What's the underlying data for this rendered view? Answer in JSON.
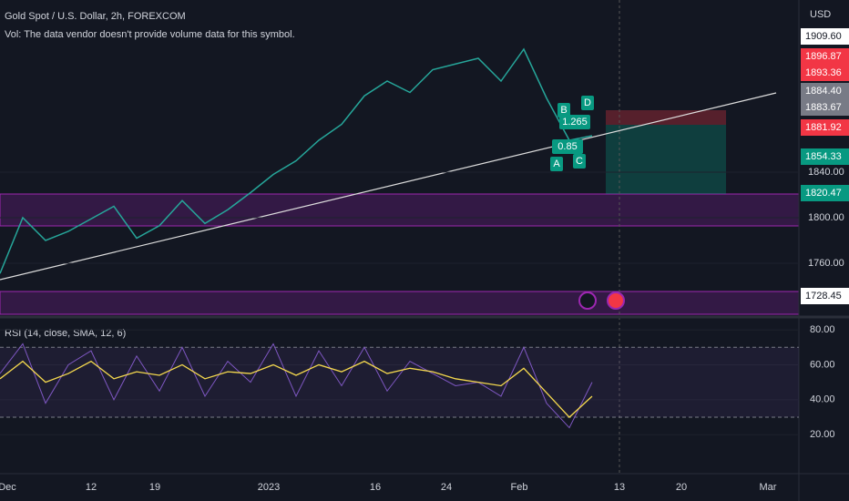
{
  "header": {
    "symbol": "Gold Spot / U.S. Dollar, 2h, FOREXCOM",
    "vol_note": "Vol: The data vendor doesn't provide volume data for this symbol."
  },
  "price_pane": {
    "currency": "USD",
    "ylim": [
      1715.2,
      1991.2
    ],
    "yticks": [
      {
        "value": 1760,
        "label": "1760.00"
      },
      {
        "value": 1800,
        "label": "1800.00"
      },
      {
        "value": 1840,
        "label": "1840.00"
      }
    ],
    "line_color": "#26a69a",
    "close": [
      1751,
      1800,
      1780,
      1788,
      1799,
      1810,
      1782,
      1793,
      1815,
      1795,
      1807,
      1822,
      1838,
      1850,
      1868,
      1882,
      1907,
      1920,
      1910,
      1930,
      1935,
      1940,
      1920,
      1948,
      1905,
      1868,
      1872
    ],
    "price_tags": [
      "1909.60",
      "1896.87",
      "1893.36",
      "1884.40",
      "1883.67",
      "1881.92",
      "1854.33",
      "1820.47",
      "1728.45"
    ],
    "pattern_labels": [
      "A",
      "B",
      "C",
      "D"
    ],
    "ratios": [
      "1.265",
      "0.85"
    ]
  },
  "rsi_pane": {
    "title": "RSI (14, close, SMA, 12, 6)",
    "ylim": [
      -2.3,
      86.3
    ],
    "yticks": [
      {
        "value": 20,
        "label": "20.00"
      },
      {
        "value": 40,
        "label": "40.00"
      },
      {
        "value": 60,
        "label": "60.00"
      },
      {
        "value": 80,
        "label": "80.00"
      }
    ],
    "bands": [
      30,
      70
    ],
    "rsi_color": "#7e57c2",
    "ma_color": "#f5d94e",
    "rsi": [
      55,
      72,
      38,
      60,
      68,
      40,
      65,
      45,
      70,
      42,
      62,
      50,
      72,
      42,
      68,
      48,
      70,
      45,
      62,
      55,
      48,
      50,
      42,
      70,
      38,
      24,
      50
    ],
    "ma": [
      52,
      62,
      50,
      55,
      62,
      52,
      56,
      54,
      60,
      52,
      56,
      55,
      60,
      54,
      60,
      56,
      62,
      55,
      58,
      56,
      52,
      50,
      48,
      58,
      44,
      30,
      42
    ]
  },
  "time_axis": [
    "Dec",
    "12",
    "19",
    "2023",
    "16",
    "24",
    "Feb",
    "13",
    "20",
    "Mar"
  ]
}
